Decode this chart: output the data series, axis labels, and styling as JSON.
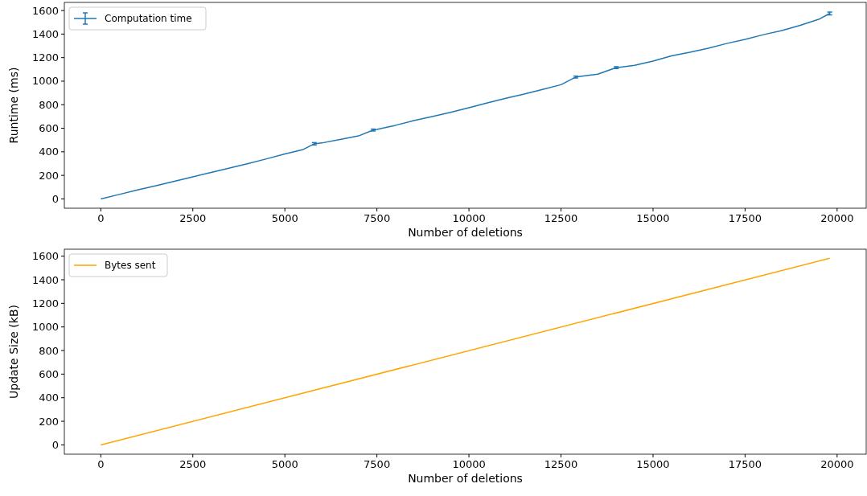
{
  "chart_data": [
    {
      "type": "line",
      "xlabel": "Number of deletions",
      "ylabel": "Runtime (ms)",
      "xlim": [
        -990,
        20790
      ],
      "ylim": [
        -79,
        1669
      ],
      "xticks": [
        0,
        2500,
        5000,
        7500,
        10000,
        12500,
        15000,
        17500,
        20000
      ],
      "yticks": [
        0,
        200,
        400,
        600,
        800,
        1000,
        1200,
        1400,
        1600
      ],
      "legend": "top left",
      "grid": false,
      "x": [
        0,
        500,
        1000,
        1500,
        2000,
        2500,
        3000,
        3500,
        4000,
        4500,
        5000,
        5500,
        5800,
        6000,
        6500,
        7000,
        7400,
        7500,
        8000,
        8500,
        9000,
        9500,
        10000,
        10500,
        11000,
        11500,
        12000,
        12500,
        12900,
        13500,
        14000,
        14500,
        15000,
        15500,
        16000,
        16500,
        17000,
        17500,
        18000,
        18500,
        19000,
        19500,
        19800
      ],
      "series": [
        {
          "name": "Computation time",
          "color": "#1f77b4",
          "values": [
            0,
            38,
            76,
            112,
            150,
            188,
            225,
            262,
            300,
            340,
            382,
            420,
            468,
            475,
            505,
            535,
            585,
            590,
            625,
            665,
            700,
            735,
            775,
            815,
            855,
            890,
            930,
            970,
            1035,
            1060,
            1115,
            1135,
            1170,
            1215,
            1245,
            1280,
            1320,
            1355,
            1395,
            1430,
            1475,
            1525,
            1575
          ],
          "errors": [
            null,
            null,
            null,
            null,
            null,
            null,
            null,
            null,
            null,
            null,
            null,
            null,
            10,
            null,
            null,
            null,
            8,
            null,
            null,
            null,
            null,
            null,
            null,
            null,
            null,
            null,
            null,
            null,
            8,
            null,
            8,
            null,
            null,
            null,
            null,
            null,
            null,
            null,
            null,
            null,
            null,
            null,
            12
          ]
        }
      ]
    },
    {
      "type": "line",
      "xlabel": "Number of deletions",
      "ylabel": "Update Size (kB)",
      "xlim": [
        -990,
        20790
      ],
      "ylim": [
        -79,
        1659
      ],
      "xticks": [
        0,
        2500,
        5000,
        7500,
        10000,
        12500,
        15000,
        17500,
        20000
      ],
      "yticks": [
        0,
        200,
        400,
        600,
        800,
        1000,
        1200,
        1400,
        1600
      ],
      "legend": "top left",
      "grid": false,
      "x": [
        0,
        19800
      ],
      "series": [
        {
          "name": "Bytes sent",
          "color": "#ffa500",
          "values": [
            0,
            1582
          ]
        }
      ]
    }
  ]
}
